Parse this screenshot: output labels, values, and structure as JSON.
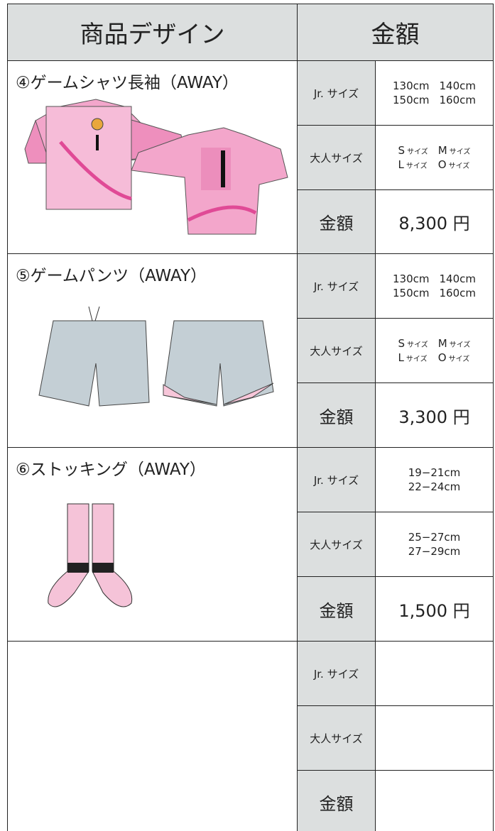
{
  "header": {
    "design": "商品デザイン",
    "price": "金額"
  },
  "items": [
    {
      "name": "④ゲームシャツ長袖（AWAY）",
      "jr_label": "Jr. サイズ",
      "jr_sizes": [
        "130cm",
        "140cm",
        "150cm",
        "160cm"
      ],
      "adult_label": "大人サイズ",
      "adult_sizes": [
        {
          "size": "S",
          "unit": "サイズ"
        },
        {
          "size": "M",
          "unit": "サイズ"
        },
        {
          "size": "L",
          "unit": "サイズ"
        },
        {
          "size": "O",
          "unit": "サイズ"
        }
      ],
      "price_label": "金額",
      "price": "8,300 円"
    },
    {
      "name": "⑤ゲームパンツ（AWAY）",
      "jr_label": "Jr. サイズ",
      "jr_sizes": [
        "130cm",
        "140cm",
        "150cm",
        "160cm"
      ],
      "adult_label": "大人サイズ",
      "adult_sizes": [
        {
          "size": "S",
          "unit": "サイズ"
        },
        {
          "size": "M",
          "unit": "サイズ"
        },
        {
          "size": "L",
          "unit": "サイズ"
        },
        {
          "size": "O",
          "unit": "サイズ"
        }
      ],
      "price_label": "金額",
      "price": "3,300 円"
    },
    {
      "name": "⑥ストッキング（AWAY）",
      "jr_label": "Jr. サイズ",
      "jr_sizes": [
        "19−21cm",
        "22−24cm"
      ],
      "adult_label": "大人サイズ",
      "adult_sizes": [
        "25−27cm",
        "27−29cm"
      ],
      "price_label": "金額",
      "price": "1,500 円"
    },
    {
      "jr_label": "Jr. サイズ",
      "adult_label": "大人サイズ",
      "price_label": "金額"
    }
  ]
}
